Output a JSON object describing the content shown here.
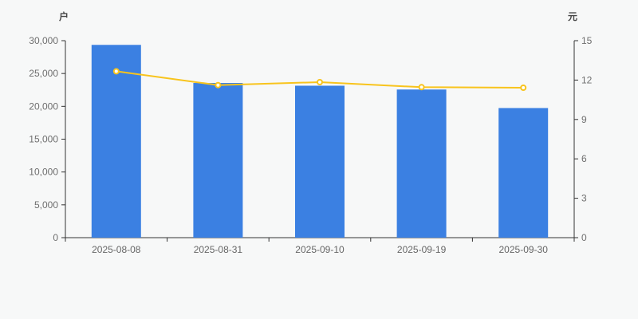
{
  "page": {
    "background_color": "#f7f8f8"
  },
  "chart_data": {
    "type": "combo-bar-line",
    "title": "",
    "legend": "none",
    "grid": false,
    "categories": [
      "2025-08-08",
      "2025-08-31",
      "2025-09-10",
      "2025-09-19",
      "2025-09-30"
    ],
    "series": [
      {
        "name": "bar-series",
        "type": "bar",
        "axis": "left",
        "unit": "户",
        "color": "#3b80e2",
        "values": [
          29360,
          23560,
          23140,
          22560,
          19740
        ]
      },
      {
        "name": "line-series",
        "type": "line",
        "axis": "right",
        "unit": "元",
        "color": "#f8c41d",
        "marker_fill": "#ffffff",
        "values": [
          12.67,
          11.62,
          11.84,
          11.46,
          11.42
        ]
      }
    ],
    "left_axis": {
      "name": "户",
      "min": 0,
      "max": 30000,
      "tick_values": [
        0,
        5000,
        10000,
        15000,
        20000,
        25000,
        30000
      ],
      "tick_labels": [
        "0",
        "5,000",
        "10,000",
        "15,000",
        "20,000",
        "25,000",
        "30,000"
      ]
    },
    "right_axis": {
      "name": "元",
      "min": 0,
      "max": 15,
      "tick_values": [
        0,
        3,
        6,
        9,
        12,
        15
      ],
      "tick_labels": [
        "0",
        "3",
        "6",
        "9",
        "12",
        "15"
      ]
    },
    "axis_line_color": "#333333"
  }
}
